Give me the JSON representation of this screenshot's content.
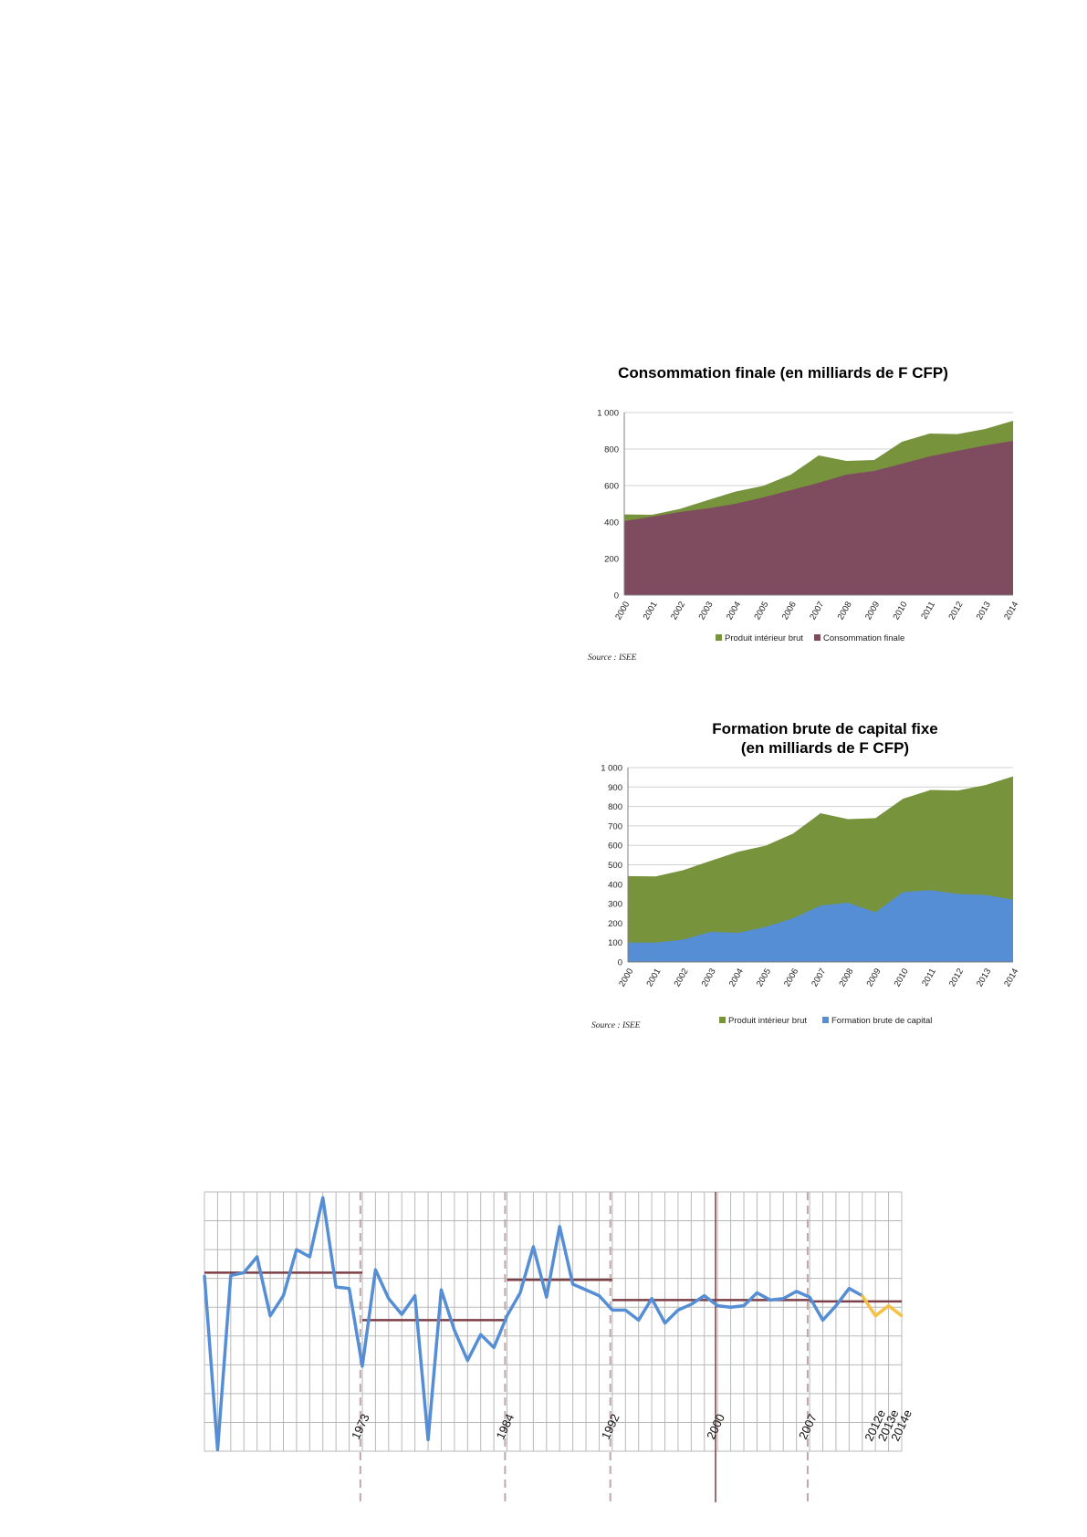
{
  "colors": {
    "pib": "#77933C",
    "conso": "#7F4C5F",
    "fbcf": "#558ED5",
    "growth_line": "#558ED5",
    "growth_estimate": "#F6C143",
    "period_average": "#7B3F46",
    "period_divider": "#C0A7A9",
    "axis": "#808080",
    "grid": "#B8B8B8"
  },
  "chart_data": [
    {
      "type": "area",
      "title": "Consommation finale (en milliards de F CFP)",
      "x": [
        "2000",
        "2001",
        "2002",
        "2003",
        "2004",
        "2005",
        "2006",
        "2007",
        "2008",
        "2009",
        "2010",
        "2011",
        "2012",
        "2013",
        "2014"
      ],
      "yticks": [
        "0",
        "200",
        "400",
        "600",
        "800",
        "1 000"
      ],
      "ylim": [
        0,
        1000
      ],
      "series": [
        {
          "name": "Produit intérieur brut",
          "values": [
            442,
            440,
            472,
            520,
            567,
            598,
            660,
            765,
            735,
            740,
            840,
            885,
            882,
            910,
            955
          ]
        },
        {
          "name": "Consommation finale",
          "values": [
            405,
            430,
            455,
            475,
            500,
            535,
            575,
            615,
            660,
            680,
            720,
            760,
            790,
            820,
            845
          ]
        }
      ],
      "legend": "bottom",
      "source": "Source : ISEE",
      "grid": "horizontal"
    },
    {
      "type": "area",
      "title": "Formation brute de capital fixe",
      "subtitle": "(en milliards de F CFP)",
      "x": [
        "2000",
        "2001",
        "2002",
        "2003",
        "2004",
        "2005",
        "2006",
        "2007",
        "2008",
        "2009",
        "2010",
        "2011",
        "2012",
        "2013",
        "2014"
      ],
      "yticks": [
        "0",
        "100",
        "200",
        "300",
        "400",
        "500",
        "600",
        "700",
        "800",
        "900",
        "1 000"
      ],
      "ylim": [
        0,
        1000
      ],
      "series": [
        {
          "name": "Produit intérieur brut",
          "values": [
            442,
            440,
            472,
            520,
            567,
            598,
            660,
            765,
            735,
            740,
            840,
            885,
            882,
            910,
            955
          ]
        },
        {
          "name": "Formation brute de capital",
          "values": [
            100,
            100,
            115,
            155,
            150,
            180,
            225,
            290,
            305,
            255,
            360,
            370,
            350,
            345,
            320
          ]
        }
      ],
      "legend": "bottom",
      "source": "Source : ISEE",
      "grid": "horizontal"
    },
    {
      "type": "line",
      "title": "",
      "grid": "both",
      "ylim": [
        -10,
        8
      ],
      "series": [
        {
          "name": "",
          "values": [
            2.2,
            -9.9,
            2.2,
            2.4,
            3.5,
            -0.6,
            0.8,
            4.0,
            3.5,
            7.6,
            1.4,
            1.3,
            -4.1,
            2.6,
            0.6,
            -0.5,
            0.8,
            -9.2,
            1.2,
            -1.6,
            -3.7,
            -1.9,
            -2.8,
            -0.6,
            1.0,
            4.2,
            0.7,
            5.6,
            1.6,
            1.2,
            0.8,
            -0.2,
            -0.2,
            -0.9,
            0.6,
            -1.1,
            -0.2,
            0.2,
            0.8,
            0.1,
            0.0,
            0.1,
            1.0,
            0.5,
            0.6,
            1.1,
            0.7,
            -0.9,
            0.1,
            1.3,
            0.8
          ]
        },
        {
          "name": "",
          "values": [
            0.8,
            -0.6,
            0.1,
            -0.6
          ]
        }
      ],
      "period_averages": [
        {
          "from_index": 0,
          "to_index": 12,
          "value": 2.4
        },
        {
          "from_index": 12,
          "to_index": 23,
          "value": -0.9
        },
        {
          "from_index": 23,
          "to_index": 31,
          "value": 1.9
        },
        {
          "from_index": 31,
          "to_index": 39,
          "value": 0.5
        },
        {
          "from_index": 39,
          "to_index": 46,
          "value": 0.5
        },
        {
          "from_index": 46,
          "to_index": 53,
          "value": 0.4
        }
      ],
      "period_markers": [
        {
          "label": "1973",
          "index": 12,
          "style": "dashed"
        },
        {
          "label": "1984",
          "index": 23,
          "style": "dashed"
        },
        {
          "label": "1992",
          "index": 31,
          "style": "dashed"
        },
        {
          "label": "2000",
          "index": 39,
          "style": "solid"
        },
        {
          "label": "2007",
          "index": 46,
          "style": "dashed"
        }
      ],
      "estimate_labels": [
        "2012e",
        "2013e",
        "2014e"
      ]
    }
  ]
}
